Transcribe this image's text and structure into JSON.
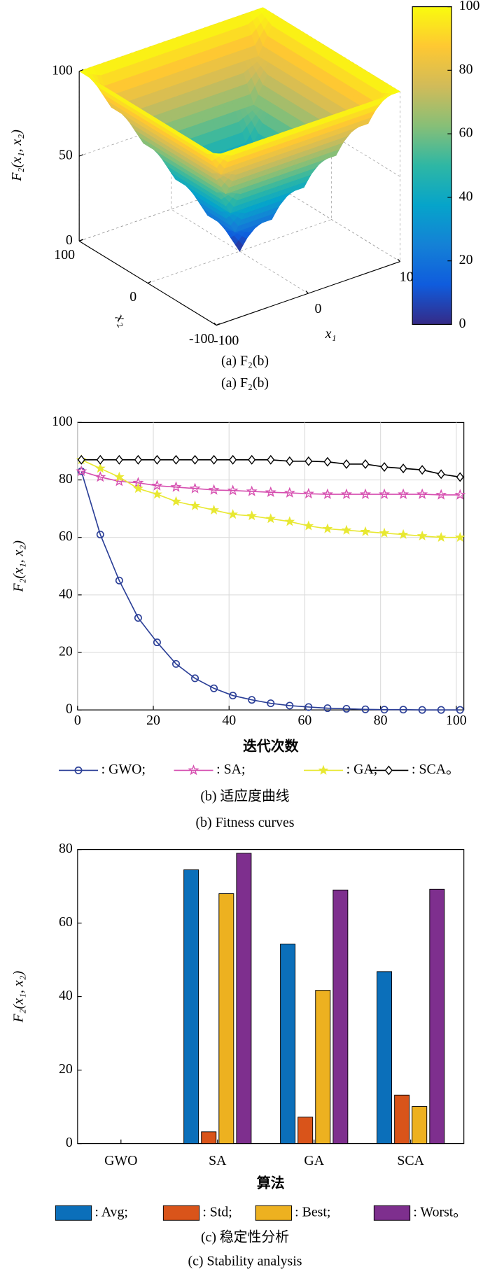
{
  "chart_data": [
    {
      "type": "surface",
      "zlabel": "F₂(x₁, x₂)",
      "xlabel": "x₁",
      "ylabel": "x₂",
      "x": [
        -100,
        -80,
        -60,
        -40,
        -20,
        0,
        20,
        40,
        60,
        80,
        100
      ],
      "y": [
        -100,
        -80,
        -60,
        -40,
        -20,
        0,
        20,
        40,
        60,
        80,
        100
      ],
      "z": [
        [
          100,
          100,
          100,
          100,
          100,
          100,
          100,
          100,
          100,
          100,
          100
        ],
        [
          100,
          80,
          80,
          80,
          80,
          80,
          80,
          80,
          80,
          80,
          100
        ],
        [
          100,
          80,
          60,
          60,
          60,
          60,
          60,
          60,
          60,
          80,
          100
        ],
        [
          100,
          80,
          60,
          40,
          40,
          40,
          40,
          40,
          60,
          80,
          100
        ],
        [
          100,
          80,
          60,
          40,
          20,
          20,
          20,
          40,
          60,
          80,
          100
        ],
        [
          100,
          80,
          60,
          40,
          20,
          0,
          20,
          40,
          60,
          80,
          100
        ],
        [
          100,
          80,
          60,
          40,
          20,
          20,
          20,
          40,
          60,
          80,
          100
        ],
        [
          100,
          80,
          60,
          40,
          40,
          40,
          40,
          40,
          60,
          80,
          100
        ],
        [
          100,
          80,
          60,
          60,
          60,
          60,
          60,
          60,
          60,
          80,
          100
        ],
        [
          100,
          80,
          80,
          80,
          80,
          80,
          80,
          80,
          80,
          80,
          100
        ],
        [
          100,
          100,
          100,
          100,
          100,
          100,
          100,
          100,
          100,
          100,
          100
        ]
      ],
      "xlim": [
        -100,
        100
      ],
      "ylim": [
        -100,
        100
      ],
      "zlim": [
        0,
        100
      ],
      "xticks": [
        -100,
        0,
        100
      ],
      "yticks": [
        -100,
        0,
        100
      ],
      "zticks": [
        0,
        50,
        100
      ],
      "colorbar_ticks": [
        0,
        20,
        40,
        60,
        80,
        100
      ],
      "colormap": [
        "#352a87",
        "#0f5cdd",
        "#1481d6",
        "#06a4ca",
        "#2eb7a4",
        "#87bf77",
        "#d1bb59",
        "#fec832",
        "#f9fb0e"
      ],
      "captions": [
        "(a) F₂(b)",
        "(a) F₂(b)"
      ]
    },
    {
      "type": "line",
      "xlabel": "迭代次数",
      "ylabel": "F₂(x₁, x₂)",
      "x": [
        1,
        6,
        11,
        16,
        21,
        26,
        31,
        36,
        41,
        46,
        51,
        56,
        61,
        66,
        71,
        76,
        81,
        86,
        91,
        96,
        101
      ],
      "series": [
        {
          "name": ": GWO;",
          "color": "#2b3f97",
          "marker": "circle",
          "values": [
            83,
            61,
            45,
            32,
            23.5,
            16,
            11,
            7.5,
            5,
            3.5,
            2.3,
            1.5,
            1,
            0.6,
            0.4,
            0.2,
            0.1,
            0.1,
            0,
            0,
            0
          ]
        },
        {
          "name": ": SA;",
          "color": "#d64fb0",
          "marker": "star-open",
          "values": [
            83,
            81,
            79.5,
            79,
            78,
            77.5,
            77,
            76.5,
            76.3,
            76,
            75.7,
            75.5,
            75.2,
            75,
            75,
            75,
            75,
            75,
            75,
            74.8,
            74.8
          ]
        },
        {
          "name": ": GA;",
          "color": "#e8e832",
          "marker": "star",
          "values": [
            87,
            84,
            81,
            77,
            75,
            72.5,
            71,
            69.5,
            68,
            67.5,
            66.5,
            65.5,
            64,
            63,
            62.5,
            62,
            61.5,
            61,
            60.5,
            60,
            60
          ]
        },
        {
          "name": ": SCA。",
          "color": "#000000",
          "marker": "diamond",
          "values": [
            87,
            87,
            87,
            87,
            87,
            87,
            87,
            87,
            87,
            87,
            87,
            86.5,
            86.5,
            86.3,
            85.5,
            85.5,
            84.5,
            84,
            83.5,
            82,
            81
          ]
        }
      ],
      "xlim": [
        0,
        102
      ],
      "ylim": [
        0,
        100
      ],
      "xticks": [
        0,
        20,
        40,
        60,
        80,
        100
      ],
      "yticks": [
        0,
        20,
        40,
        60,
        80,
        100
      ],
      "grid": true,
      "captions": [
        "(b) 适应度曲线",
        "(b) Fitness curves"
      ]
    },
    {
      "type": "bar",
      "xlabel": "算法",
      "ylabel": "F₂(x₁, x₂)",
      "categories": [
        "GWO",
        "SA",
        "GA",
        "SCA"
      ],
      "series": [
        {
          "name": ": Avg;",
          "color": "#0b6fba",
          "values": [
            0,
            74.5,
            54.3,
            46.8
          ]
        },
        {
          "name": ": Std;",
          "color": "#d9541a",
          "values": [
            0,
            3.2,
            7.2,
            13.2
          ]
        },
        {
          "name": ": Best;",
          "color": "#edb120",
          "values": [
            0,
            68,
            41.7,
            10.1
          ]
        },
        {
          "name": ": Worst。",
          "color": "#7e2f8e",
          "values": [
            0,
            79,
            69,
            69.2
          ]
        }
      ],
      "ylim": [
        0,
        80
      ],
      "yticks": [
        0,
        20,
        40,
        60,
        80
      ],
      "grid": false,
      "captions": [
        "(c) 稳定性分析",
        "(c) Stability analysis"
      ]
    }
  ]
}
